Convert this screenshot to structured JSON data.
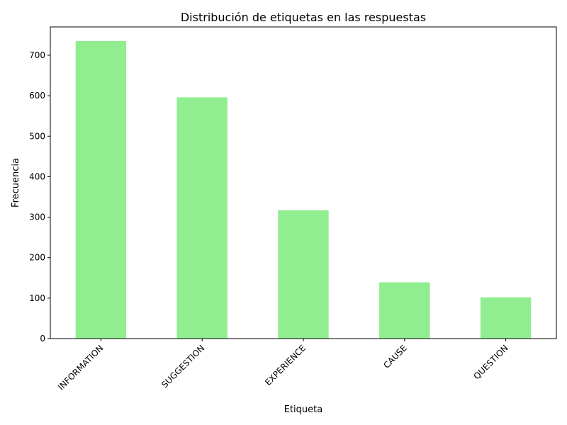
{
  "chart_data": {
    "type": "bar",
    "title": "Distribución de etiquetas en las respuestas",
    "xlabel": "Etiqueta",
    "ylabel": "Frecuencia",
    "categories": [
      "INFORMATION",
      "SUGGESTION",
      "EXPERIENCE",
      "CAUSE",
      "QUESTION"
    ],
    "values": [
      735,
      596,
      317,
      139,
      102
    ],
    "ylim": [
      0,
      770
    ],
    "yticks": [
      0,
      100,
      200,
      300,
      400,
      500,
      600,
      700
    ],
    "x_tick_rotation_deg": 45,
    "bar_color": "#90ee90",
    "grid": false,
    "legend": "none"
  }
}
